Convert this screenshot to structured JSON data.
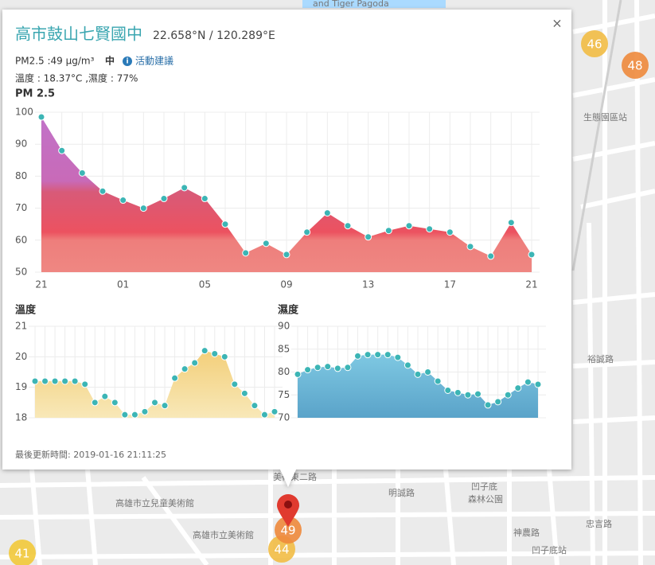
{
  "popup": {
    "title": "高市鼓山七賢國中",
    "coords": "22.658°N / 120.289°E",
    "pm_line": "PM2.5 :49 μg/m³",
    "level": "中",
    "advice": "活動建議",
    "weather": "溫度 : 18.37°C ,濕度 : 77%",
    "updated": "最後更新時間: 2019-01-16 21:11:25",
    "close": "×"
  },
  "charts": [
    {
      "type": "area",
      "title": "PM 2.5",
      "categories": [
        "21",
        null,
        null,
        null,
        "01",
        null,
        null,
        null,
        "05",
        null,
        null,
        null,
        "09",
        null,
        null,
        null,
        "13",
        null,
        null,
        null,
        "17",
        null,
        null,
        null,
        "21"
      ],
      "values": [
        98.5,
        88,
        81,
        75.3,
        72.5,
        70,
        73,
        76.4,
        73,
        65,
        56,
        59,
        55.5,
        62.5,
        68.5,
        64.5,
        61,
        63,
        64.5,
        63.5,
        62.5,
        58,
        55,
        65.5,
        55.5
      ],
      "ylim": [
        50,
        100
      ],
      "yticks": [
        50,
        60,
        70,
        80,
        90,
        100
      ],
      "color": "#3cb5b5",
      "grid": true
    },
    {
      "type": "area",
      "title": "溫度",
      "values": [
        19.2,
        19.2,
        19.2,
        19.2,
        19.2,
        19.1,
        18.5,
        18.7,
        18.5,
        18.1,
        18.1,
        18.2,
        18.5,
        18.4,
        19.3,
        19.6,
        19.8,
        20.2,
        20.1,
        20.0,
        19.1,
        18.8,
        18.4,
        18.1,
        18.2
      ],
      "ylim": [
        18,
        21
      ],
      "yticks": [
        18,
        19,
        20,
        21
      ],
      "color": "#3cb5b5",
      "grid": true
    },
    {
      "type": "area",
      "title": "濕度",
      "values": [
        79.5,
        80.5,
        81,
        81.2,
        80.8,
        81,
        83.5,
        83.8,
        83.8,
        83.8,
        83.2,
        81.5,
        79.5,
        80,
        78,
        76,
        75.5,
        75,
        75.2,
        72.8,
        73.5,
        75,
        76.5,
        77.8,
        77.3
      ],
      "ylim": [
        70,
        90
      ],
      "yticks": [
        70,
        75,
        80,
        85,
        90
      ],
      "color": "#3cb5b5",
      "grid": true
    }
  ],
  "map": {
    "labels": [
      "and Tiger Pagoda",
      "生態園區站",
      "裕誠路",
      "高雄市立兒童美術館",
      "高雄市立美術館",
      "凹子底",
      "森林公園",
      "神農路",
      "凹子底站",
      "忠言路",
      "美術東二路",
      "明誠路"
    ],
    "markers": [
      {
        "value": 46,
        "color": "#f2bd45"
      },
      {
        "value": 48,
        "color": "#ee8a3c"
      },
      {
        "value": 41,
        "color": "#f2c93a"
      },
      {
        "value": 44,
        "color": "#f2bd45"
      },
      {
        "value": 49,
        "color": "#ee8a3c"
      }
    ]
  }
}
